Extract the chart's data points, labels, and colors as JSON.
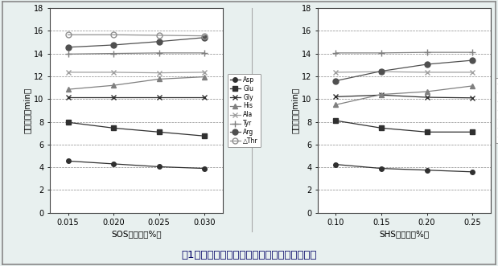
{
  "fig_title": "図1．イオンペアー試薬の添加量と保持の関係",
  "background_color": "#e8f0ef",
  "plot_bg_color": "#ffffff",
  "ylim": [
    0,
    18
  ],
  "yticks": [
    0,
    2,
    4,
    6,
    8,
    10,
    12,
    14,
    16,
    18
  ],
  "ylabel": "保持時間（min）",
  "left_chart": {
    "xlabel": "SOS添加量（%）",
    "xvals": [
      0.015,
      0.02,
      0.025,
      0.03
    ],
    "xlim": [
      0.013,
      0.032
    ],
    "series": {
      "Asp": [
        4.55,
        4.3,
        4.05,
        3.9
      ],
      "Glu": [
        7.95,
        7.45,
        7.1,
        6.75
      ],
      "Gly": [
        10.15,
        10.15,
        10.15,
        10.15
      ],
      "His": [
        10.85,
        11.2,
        11.75,
        11.95
      ],
      "Ala": [
        12.35,
        12.35,
        12.3,
        12.35
      ],
      "Tyr": [
        13.95,
        14.0,
        14.05,
        14.05
      ],
      "Arg": [
        14.55,
        14.75,
        15.05,
        15.4
      ],
      "DThr": [
        15.65,
        15.65,
        15.6,
        15.55
      ]
    },
    "legend_labels": [
      "Asp",
      "Glu",
      "Gly",
      "His",
      "Ala",
      "Tyr",
      "Arg",
      "△Thr"
    ]
  },
  "right_chart": {
    "xlabel": "SHS添加量（%）",
    "xvals": [
      0.1,
      0.15,
      0.2,
      0.25
    ],
    "xlim": [
      0.08,
      0.27
    ],
    "series": {
      "Asp": [
        4.25,
        3.9,
        3.75,
        3.6
      ],
      "Glu": [
        8.1,
        7.45,
        7.1,
        7.1
      ],
      "Gly": [
        10.2,
        10.35,
        10.15,
        10.1
      ],
      "His": [
        9.5,
        10.4,
        10.65,
        11.15
      ],
      "Ala": [
        12.35,
        12.4,
        12.35,
        12.35
      ],
      "Arg": [
        11.6,
        12.45,
        13.05,
        13.4
      ],
      "Tyr": [
        14.05,
        14.05,
        14.1,
        14.1
      ]
    },
    "legend_labels": [
      "Asp",
      "Glu",
      "Gly",
      "His",
      "Ala",
      "Arg",
      "Tyr"
    ]
  },
  "line_styles": {
    "Asp": {
      "color": "#303030",
      "marker": "o",
      "markersize": 4,
      "linestyle": "-",
      "fillstyle": "full",
      "mfc": "#303030"
    },
    "Glu": {
      "color": "#303030",
      "marker": "s",
      "markersize": 4,
      "linestyle": "-",
      "fillstyle": "full",
      "mfc": "#303030"
    },
    "Gly": {
      "color": "#303030",
      "marker": "x",
      "markersize": 5,
      "linestyle": "-",
      "fillstyle": "full",
      "mfc": "#303030"
    },
    "His": {
      "color": "#808080",
      "marker": "^",
      "markersize": 4,
      "linestyle": "-",
      "fillstyle": "full",
      "mfc": "#808080"
    },
    "Ala": {
      "color": "#a0a0a0",
      "marker": "x",
      "markersize": 5,
      "linestyle": "-",
      "fillstyle": "full",
      "mfc": "#a0a0a0"
    },
    "Tyr": {
      "color": "#808080",
      "marker": "+",
      "markersize": 6,
      "linestyle": "-",
      "fillstyle": "full",
      "mfc": "#808080"
    },
    "Arg": {
      "color": "#505050",
      "marker": "o",
      "markersize": 5,
      "linestyle": "-",
      "fillstyle": "full",
      "mfc": "#505050"
    },
    "DThr": {
      "color": "#909090",
      "marker": "o",
      "markersize": 5,
      "linestyle": "-",
      "fillstyle": "none",
      "mfc": "none"
    }
  }
}
